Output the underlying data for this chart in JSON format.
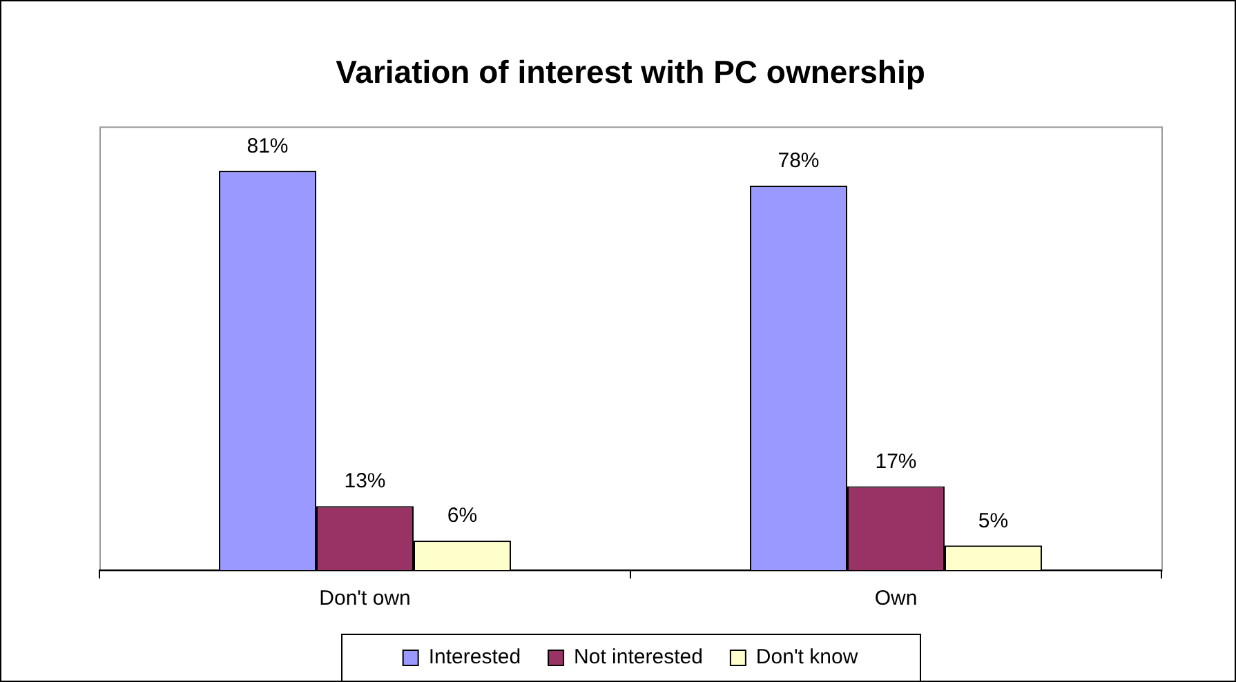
{
  "chart_data": {
    "type": "bar",
    "title": "Variation of interest with PC ownership",
    "categories": [
      "Don't own",
      "Own"
    ],
    "series": [
      {
        "name": "Interested",
        "color": "#9999ff",
        "values": [
          81,
          78
        ],
        "value_labels": [
          "81%",
          "78%"
        ]
      },
      {
        "name": "Not interested",
        "color": "#993366",
        "values": [
          13,
          17
        ],
        "value_labels": [
          "13%",
          "17%"
        ]
      },
      {
        "name": "Don't know",
        "color": "#ffffcc",
        "values": [
          6,
          5
        ],
        "value_labels": [
          "6%",
          "5%"
        ]
      }
    ],
    "legend": "bottom",
    "grid": false
  }
}
